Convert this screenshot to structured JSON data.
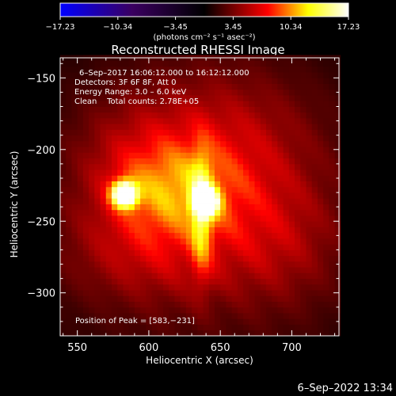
{
  "chart_data": {
    "type": "heatmap",
    "title": "Reconstructed RHESSI Image",
    "xlabel": "Heliocentric X (arcsec)",
    "ylabel": "Heliocentric Y (arcsec)",
    "xlim": [
      538,
      733
    ],
    "ylim": [
      -330,
      -136
    ],
    "x_ticks": [
      550,
      600,
      650,
      700
    ],
    "y_ticks": [
      -150,
      -200,
      -250,
      -300
    ],
    "x_tick_labels": [
      "550",
      "600",
      "650",
      "700"
    ],
    "y_tick_labels": [
      "−150",
      "−200",
      "−250",
      "−300"
    ],
    "colorbar": {
      "range": [
        -17.23,
        17.23
      ],
      "tick_labels": [
        "−17.23",
        "−10.34",
        "−3.45",
        "3.45",
        "10.34",
        "17.23"
      ],
      "label": "(photons cm⁻² s⁻¹ asec⁻²)",
      "colors": [
        "#0000ff",
        "#000000",
        "#ff0000",
        "#ffff00",
        "#ffffff"
      ]
    },
    "annotations": {
      "line1": "6–Sep–2017 16:06:12.000 to 16:12:12.000",
      "line2": "Detectors: 3F 6F 8F, Att 0",
      "line3": "Energy Range: 3.0 – 6.0 keV",
      "line4": "Clean    Total counts: 2.78E+05",
      "peak": "Position of Peak = [583,−231]"
    },
    "sources": [
      {
        "x": 583,
        "y": -231,
        "peak": 17.23
      },
      {
        "x": 640,
        "y": -236,
        "peak": 15.5
      }
    ],
    "peak_position": [
      583,
      -231
    ]
  },
  "footer": {
    "timestamp": "6–Sep–2022 13:34"
  }
}
